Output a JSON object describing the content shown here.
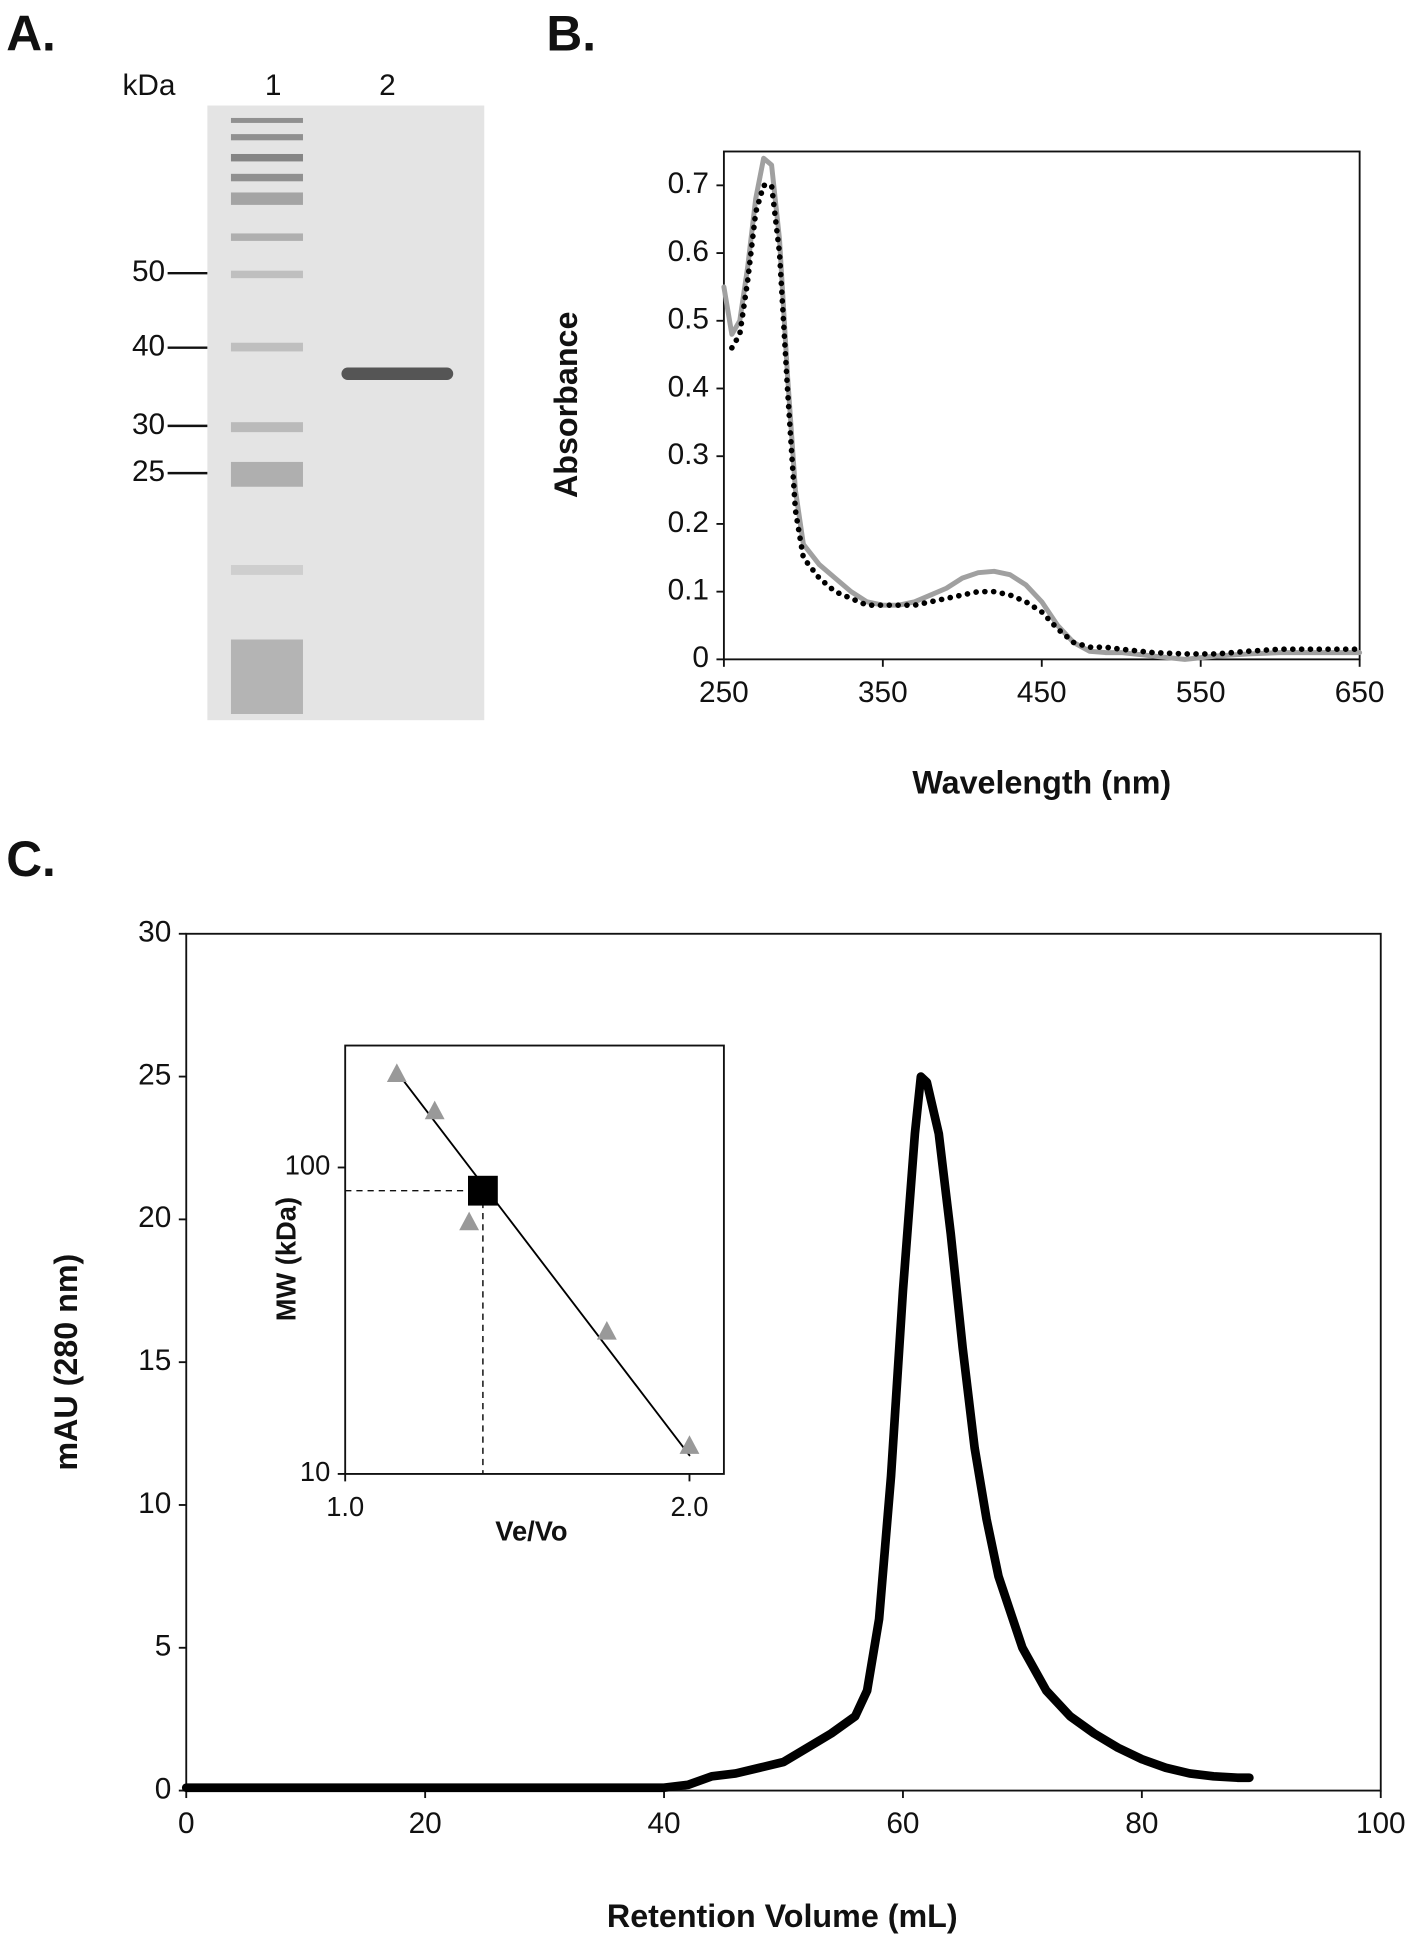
{
  "gel": {
    "panel_label": "A.",
    "unit": "kDa",
    "lanes": [
      "1",
      "2"
    ],
    "markers": [
      50,
      40,
      30,
      25
    ]
  },
  "chart_data": [
    {
      "type": "line",
      "panel_label": "B.",
      "x_label": "Wavelength (nm)",
      "y_label": "Absorbance",
      "x": [
        250,
        255,
        260,
        265,
        270,
        275,
        280,
        285,
        290,
        295,
        300,
        310,
        320,
        330,
        340,
        350,
        360,
        370,
        380,
        390,
        400,
        410,
        420,
        430,
        440,
        450,
        460,
        470,
        480,
        490,
        500,
        520,
        540,
        560,
        580,
        600,
        620,
        650
      ],
      "series": [
        {
          "color": "#a0a0a0",
          "style": "solid",
          "values": [
            0.55,
            0.48,
            0.5,
            0.58,
            0.68,
            0.74,
            0.73,
            0.62,
            0.42,
            0.25,
            0.17,
            0.14,
            0.12,
            0.1,
            0.085,
            0.08,
            0.08,
            0.085,
            0.095,
            0.105,
            0.12,
            0.128,
            0.13,
            0.125,
            0.11,
            0.085,
            0.05,
            0.025,
            0.012,
            0.01,
            0.01,
            0.005,
            0,
            0.005,
            0.008,
            0.01,
            0.01,
            0.01
          ]
        },
        {
          "color": "#000000",
          "style": "dotted",
          "values": [
            null,
            0.46,
            0.48,
            0.56,
            0.66,
            0.7,
            0.7,
            0.6,
            0.4,
            0.22,
            0.15,
            0.12,
            0.1,
            0.09,
            0.08,
            0.08,
            0.08,
            0.08,
            0.085,
            0.09,
            0.095,
            0.1,
            0.1,
            0.095,
            0.085,
            0.07,
            0.045,
            0.025,
            0.018,
            0.018,
            0.015,
            0.01,
            0.008,
            0.008,
            0.012,
            0.015,
            0.015,
            0.015
          ]
        }
      ],
      "xlim": [
        250,
        650
      ],
      "ylim": [
        0,
        0.75
      ],
      "xticks": [
        250,
        350,
        450,
        550,
        650
      ],
      "yticks": [
        0,
        0.1,
        0.2,
        0.3,
        0.4,
        0.5,
        0.6,
        0.7
      ],
      "frame": true
    },
    {
      "type": "line",
      "panel_label": "C.",
      "x_label": "Retention Volume (mL)",
      "y_label": "mAU (280 nm)",
      "x": [
        0,
        10,
        20,
        30,
        40,
        42,
        44,
        46,
        48,
        50,
        52,
        54,
        56,
        57,
        58,
        59,
        60,
        61,
        61.5,
        62,
        63,
        64,
        65,
        66,
        67,
        68,
        70,
        72,
        74,
        76,
        78,
        80,
        82,
        84,
        86,
        88,
        89
      ],
      "series": [
        {
          "color": "#000000",
          "style": "solid",
          "values": [
            0.1,
            0.1,
            0.1,
            0.1,
            0.1,
            0.2,
            0.5,
            0.6,
            0.8,
            1.0,
            1.5,
            2.0,
            2.6,
            3.5,
            6,
            11,
            17.5,
            23,
            25,
            24.8,
            23,
            19.5,
            15.5,
            12,
            9.5,
            7.5,
            5,
            3.5,
            2.6,
            2.0,
            1.5,
            1.1,
            0.8,
            0.6,
            0.5,
            0.45,
            0.45
          ]
        }
      ],
      "xlim": [
        0,
        100
      ],
      "ylim": [
        0,
        30
      ],
      "xticks": [
        0,
        20,
        40,
        60,
        80,
        100
      ],
      "yticks": [
        0,
        5,
        10,
        15,
        20,
        25,
        30
      ],
      "frame": true
    },
    {
      "type": "scatter",
      "x_label": "Ve/Vo",
      "y_label": "MW (kDa)",
      "y_scale": "log",
      "series": [
        {
          "marker": "line",
          "color": "#000000",
          "x": [
            1.15,
            2.0
          ],
          "values": [
            205,
            11.5
          ]
        },
        {
          "marker": "triangle",
          "color": "#999999",
          "x": [
            1.15,
            1.26,
            1.36,
            1.76,
            2.0
          ],
          "values": [
            201,
            152,
            66,
            29,
            12.3
          ]
        },
        {
          "marker": "square",
          "color": "#000000",
          "guides": true,
          "x": [
            1.4
          ],
          "values": [
            84
          ]
        }
      ],
      "xlim": [
        1.0,
        2.1
      ],
      "ylim": [
        10,
        250
      ],
      "xticks": [
        {
          "value": 1,
          "label": "1.0"
        },
        {
          "value": 2,
          "label": "2.0"
        }
      ],
      "yticks": [
        10,
        100
      ],
      "frame": true
    }
  ]
}
